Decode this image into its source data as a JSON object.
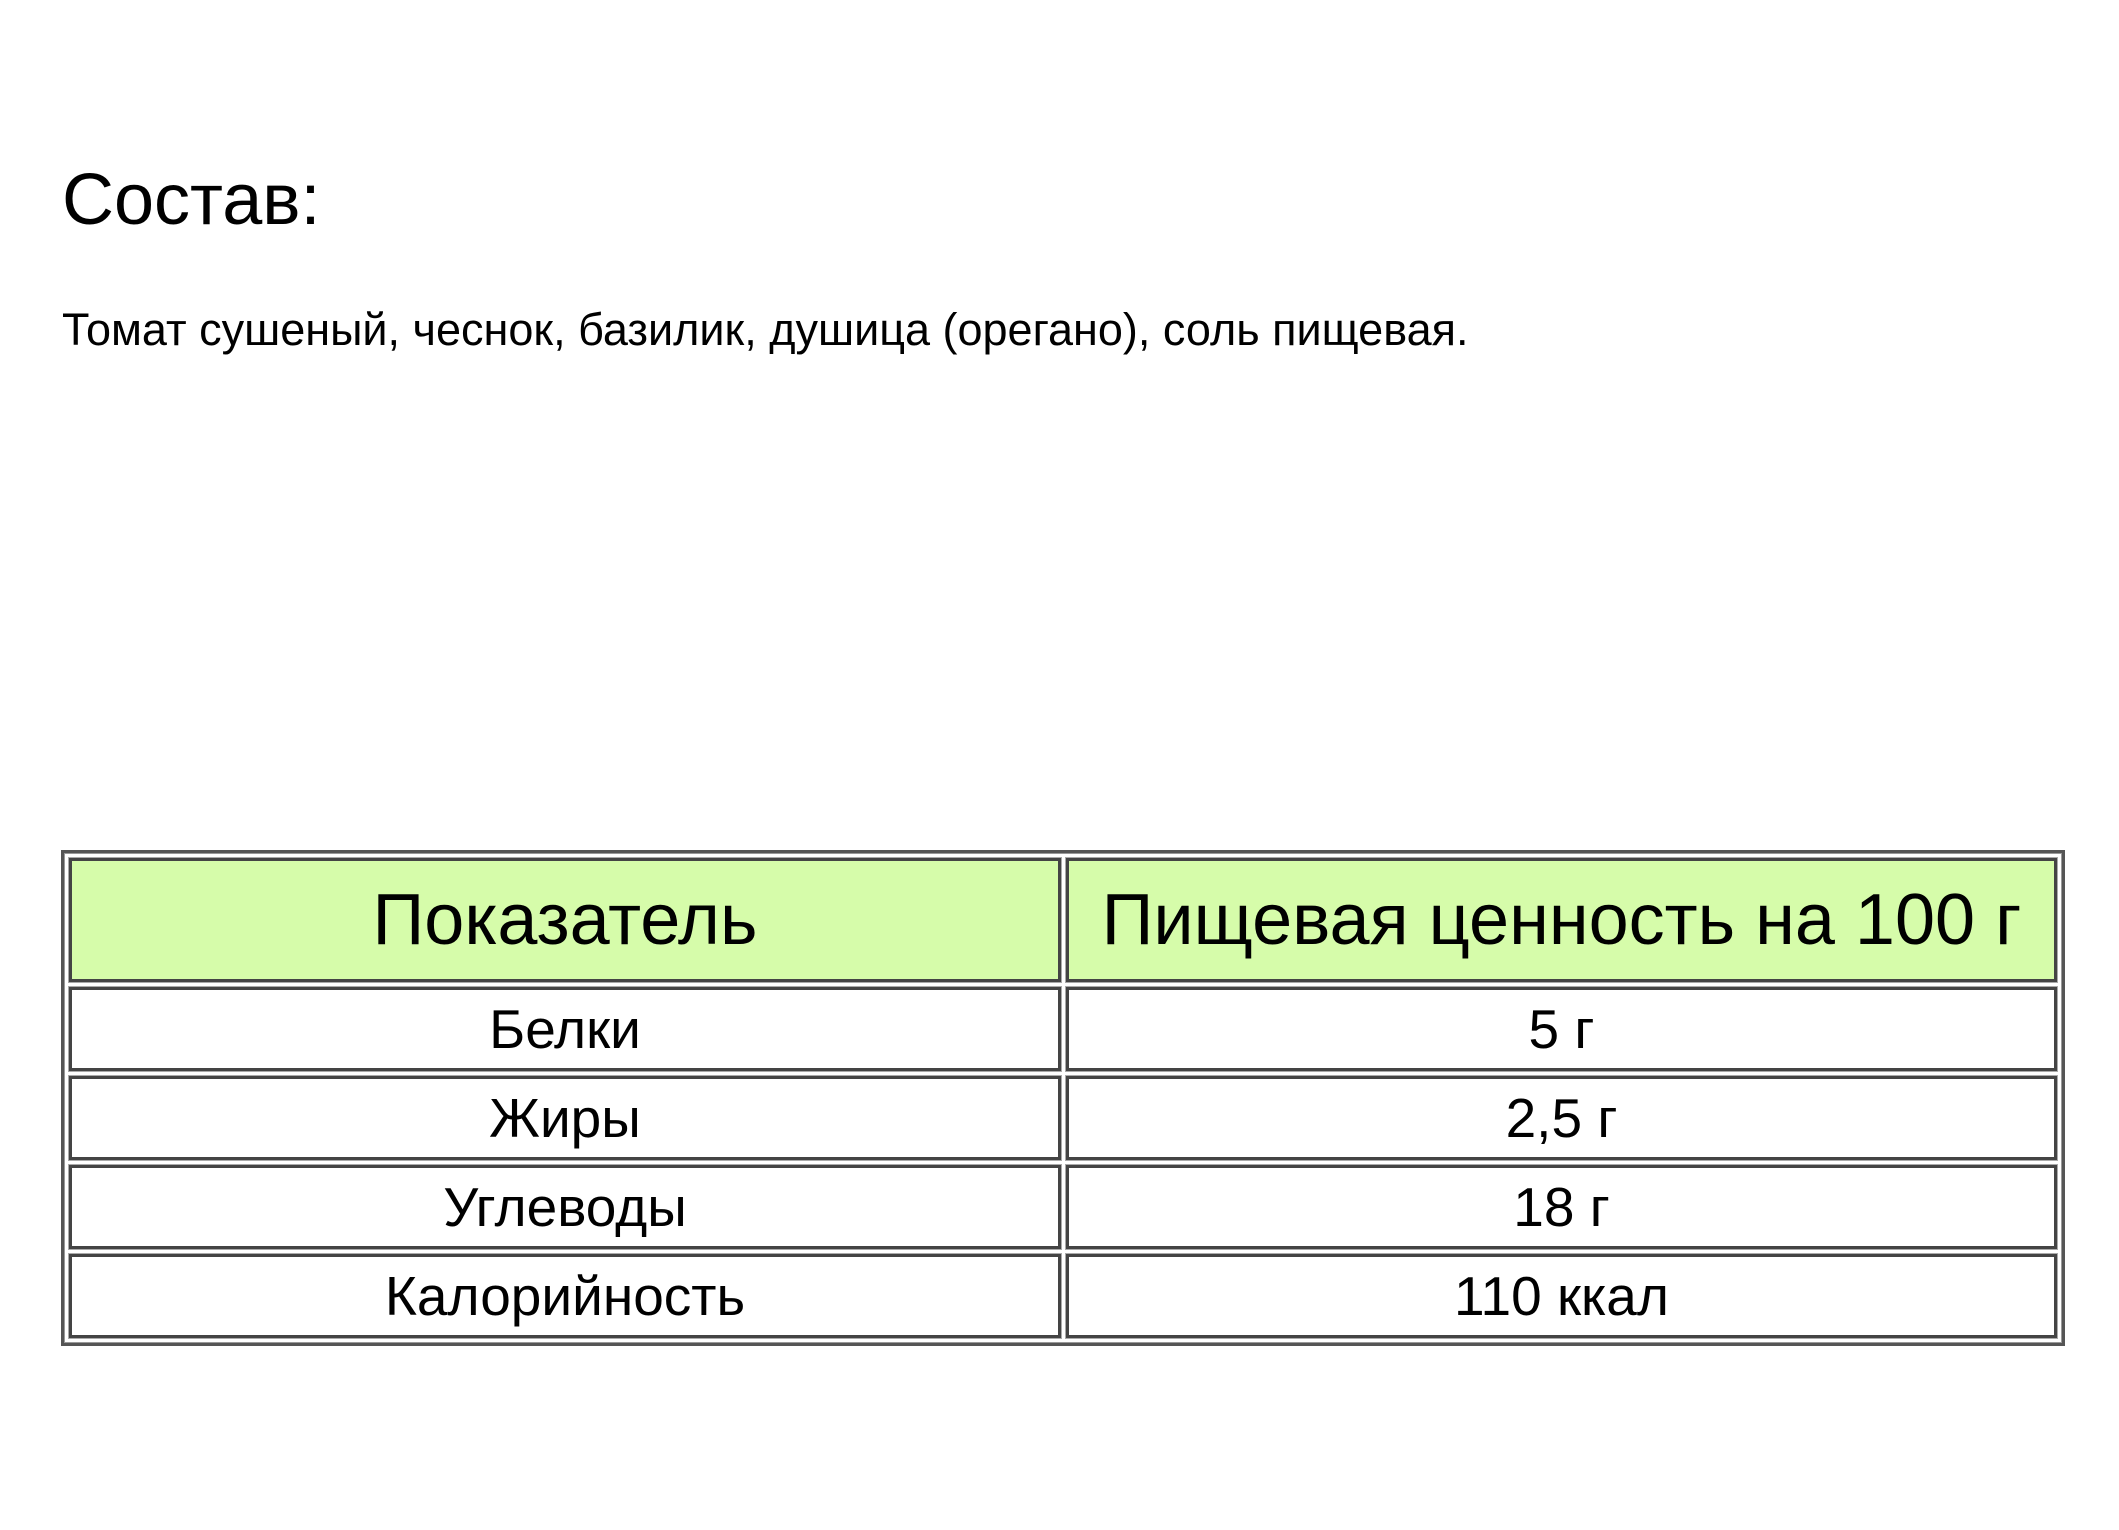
{
  "composition": {
    "title": "Состав:",
    "ingredients": "Томат сушеный, чеснок, базилик, душица (орегано), соль пищевая."
  },
  "nutrition_table": {
    "headers": [
      "Показатель",
      "Пищевая ценность на 100 г"
    ],
    "header_color": "#d6fcaa",
    "rows": [
      [
        "Белки",
        "5 г"
      ],
      [
        "Жиры",
        "2,5 г"
      ],
      [
        "Углеводы",
        "18 г"
      ],
      [
        "Калорийность",
        "110 ккал"
      ]
    ]
  }
}
